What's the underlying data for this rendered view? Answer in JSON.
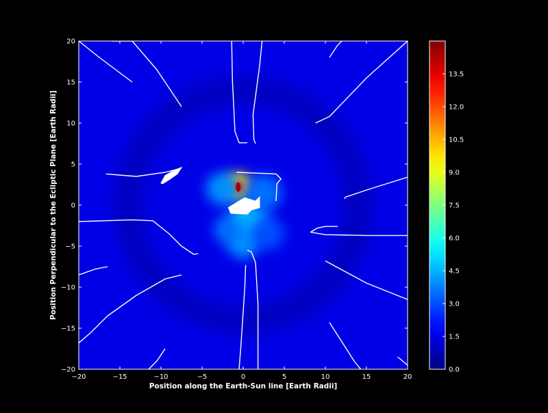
{
  "chart_data": {
    "type": "heatmap",
    "title": "",
    "xlabel": "Position along the Earth-Sun line [Earth Radii]",
    "ylabel": "Position Perpendicular to the Ecliptic Plane [Earth Radii]",
    "xlim": [
      -20,
      20
    ],
    "ylim": [
      -20,
      20
    ],
    "x_ticks": [
      -20,
      -15,
      -10,
      -5,
      0,
      5,
      10,
      15,
      20
    ],
    "y_ticks": [
      -20,
      -15,
      -10,
      -5,
      0,
      5,
      10,
      15,
      20
    ],
    "x_tick_labels": [
      "−20",
      "−15",
      "−10",
      "−5",
      "0",
      "5",
      "10",
      "15",
      "20"
    ],
    "y_tick_labels": [
      "−20",
      "−15",
      "−10",
      "−5",
      "0",
      "5",
      "10",
      "15",
      "20"
    ],
    "colorbar": {
      "colormap": "jet",
      "range": [
        0,
        15
      ],
      "ticks": [
        0.0,
        1.5,
        3.0,
        4.5,
        6.0,
        7.5,
        9.0,
        10.5,
        12.0,
        13.5
      ],
      "tick_labels": [
        "0.0",
        "1.5",
        "3.0",
        "4.5",
        "6.0",
        "7.5",
        "9.0",
        "10.5",
        "12.0",
        "13.5"
      ]
    },
    "background_level": 1.5,
    "peak": {
      "x": -0.6,
      "y": 2.2,
      "value": 14.5
    },
    "hotspots": [
      {
        "x": -0.6,
        "y": 2.3,
        "r": 1.6,
        "value": 9.5
      },
      {
        "x": -0.6,
        "y": 2.2,
        "r": 0.8,
        "value": 12.5
      },
      {
        "x": 0.6,
        "y": -2.0,
        "r": 2.5,
        "value": 4.5
      },
      {
        "x": -2.5,
        "y": 2.0,
        "r": 2.0,
        "value": 4.0
      },
      {
        "x": 2.5,
        "y": 1.5,
        "r": 2.2,
        "value": 3.5
      },
      {
        "x": 0.0,
        "y": -4.5,
        "r": 2.0,
        "value": 4.0
      },
      {
        "x": -2.0,
        "y": -3.0,
        "r": 1.6,
        "value": 3.5
      },
      {
        "x": 3.0,
        "y": -3.5,
        "r": 2.0,
        "value": 3.0
      }
    ],
    "ring": {
      "cx": 0,
      "cy": 0,
      "radius": 14,
      "width": 3.5,
      "value": 0.8
    },
    "field_lines": [
      [
        [
          -16.0,
          20.0
        ],
        [
          -13.5,
          20.0
        ],
        [
          -10.5,
          16.5
        ],
        [
          -7.5,
          12.0
        ]
      ],
      [
        [
          -20.0,
          20.0
        ],
        [
          -17.5,
          18.0
        ],
        [
          -13.5,
          15.0
        ]
      ],
      [
        [
          -1.4,
          20.0
        ],
        [
          -1.3,
          15.0
        ],
        [
          -1.0,
          9.0
        ],
        [
          -0.5,
          7.6
        ],
        [
          0.5,
          7.6
        ]
      ],
      [
        [
          2.3,
          20.0
        ],
        [
          2.0,
          17.0
        ],
        [
          1.2,
          11.0
        ],
        [
          1.3,
          8.0
        ],
        [
          1.5,
          7.5
        ]
      ],
      [
        [
          10.5,
          18.0
        ],
        [
          11.5,
          19.5
        ],
        [
          12.0,
          20.0
        ]
      ],
      [
        [
          8.8,
          10.0
        ],
        [
          10.5,
          10.8
        ],
        [
          15.0,
          15.5
        ],
        [
          20.0,
          20.0
        ]
      ],
      [
        [
          -16.7,
          3.8
        ],
        [
          -13.0,
          3.5
        ],
        [
          -9.5,
          4.0
        ],
        [
          -7.5,
          4.5
        ]
      ],
      [
        [
          -0.8,
          4.0
        ],
        [
          4.0,
          3.8
        ],
        [
          4.6,
          3.2
        ],
        [
          4.1,
          2.6
        ],
        [
          4.0,
          0.5
        ]
      ],
      [
        [
          20.0,
          3.4
        ],
        [
          15.5,
          2.0
        ],
        [
          12.5,
          1.0
        ],
        [
          12.3,
          0.8
        ]
      ],
      [
        [
          -20.0,
          -2.0
        ],
        [
          -13.5,
          -1.8
        ],
        [
          -11.0,
          -1.9
        ],
        [
          -9.0,
          -3.5
        ],
        [
          -7.5,
          -5.0
        ],
        [
          -6.0,
          -6.0
        ],
        [
          -5.5,
          -5.9
        ]
      ],
      [
        [
          8.2,
          -3.3
        ],
        [
          9.0,
          -2.8
        ],
        [
          10.0,
          -2.6
        ],
        [
          11.5,
          -2.6
        ]
      ],
      [
        [
          8.2,
          -3.3
        ],
        [
          10.0,
          -3.6
        ],
        [
          15.0,
          -3.7
        ],
        [
          20.0,
          -3.7
        ]
      ],
      [
        [
          -20.0,
          -8.5
        ],
        [
          -18.0,
          -7.8
        ],
        [
          -16.5,
          -7.5
        ]
      ],
      [
        [
          -20.0,
          -16.8
        ],
        [
          -18.5,
          -15.5
        ],
        [
          -16.5,
          -13.5
        ],
        [
          -13.0,
          -11.0
        ],
        [
          -9.5,
          -9.0
        ],
        [
          -7.5,
          -8.5
        ]
      ],
      [
        [
          -11.5,
          -20.0
        ],
        [
          -10.5,
          -19.0
        ],
        [
          -9.5,
          -17.5
        ]
      ],
      [
        [
          0.5,
          -5.5
        ],
        [
          1.0,
          -5.7
        ],
        [
          1.5,
          -7.0
        ],
        [
          1.8,
          -12.0
        ],
        [
          1.8,
          -20.0
        ]
      ],
      [
        [
          0.3,
          -7.3
        ],
        [
          0.2,
          -10.0
        ],
        [
          -0.3,
          -17.5
        ],
        [
          -0.5,
          -20.0
        ]
      ],
      [
        [
          10.0,
          -6.8
        ],
        [
          15.0,
          -9.5
        ],
        [
          20.0,
          -11.5
        ]
      ],
      [
        [
          10.5,
          -14.3
        ],
        [
          13.5,
          -19.0
        ],
        [
          14.3,
          -20.0
        ]
      ],
      [
        [
          18.8,
          -18.5
        ],
        [
          20.0,
          -19.5
        ]
      ]
    ],
    "filled_regions": [
      [
        [
          -10.0,
          2.7
        ],
        [
          -9.5,
          3.6
        ],
        [
          -8.5,
          4.2
        ],
        [
          -7.5,
          4.6
        ],
        [
          -8.0,
          3.8
        ],
        [
          -9.0,
          3.1
        ],
        [
          -9.8,
          2.6
        ]
      ],
      [
        [
          -1.8,
          -0.3
        ],
        [
          -0.5,
          0.5
        ],
        [
          0.2,
          0.9
        ],
        [
          1.5,
          0.5
        ],
        [
          2.0,
          1.0
        ],
        [
          2.0,
          -0.3
        ],
        [
          1.0,
          -0.6
        ],
        [
          0.5,
          -1.1
        ],
        [
          -1.5,
          -1.0
        ]
      ]
    ]
  }
}
